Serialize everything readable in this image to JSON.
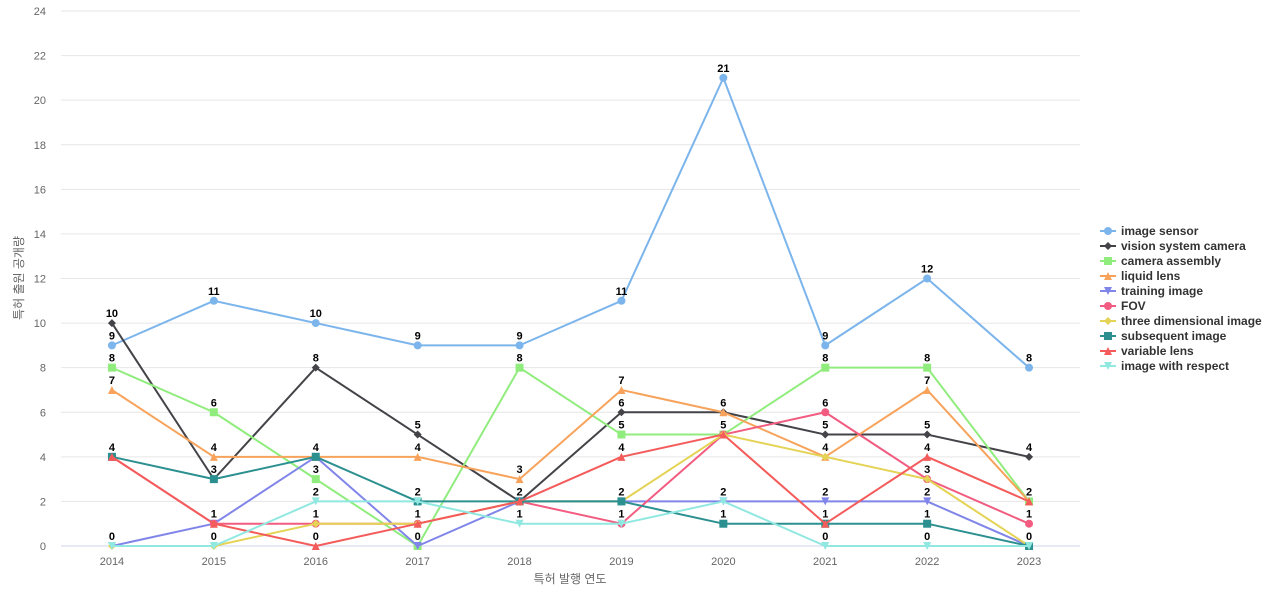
{
  "chart_data": {
    "type": "line",
    "title": "",
    "xlabel": "특허 발행 연도",
    "ylabel": "특허 출원 공개량",
    "categories": [
      "2014",
      "2015",
      "2016",
      "2017",
      "2018",
      "2019",
      "2020",
      "2021",
      "2022",
      "2023"
    ],
    "ylim": [
      0,
      24
    ],
    "yticks": [
      0,
      2,
      4,
      6,
      8,
      10,
      12,
      14,
      16,
      18,
      20,
      22,
      24
    ],
    "grid": true,
    "legend_position": "right",
    "series": [
      {
        "name": "image sensor",
        "color": "#7cb5ec",
        "marker": "circle",
        "values": [
          9,
          11,
          10,
          9,
          9,
          11,
          21,
          9,
          12,
          8
        ]
      },
      {
        "name": "vision system camera",
        "color": "#434348",
        "marker": "diamond",
        "values": [
          10,
          3,
          8,
          5,
          2,
          6,
          6,
          5,
          5,
          4
        ]
      },
      {
        "name": "camera assembly",
        "color": "#90ed7d",
        "marker": "square",
        "values": [
          8,
          6,
          3,
          0,
          8,
          5,
          5,
          8,
          8,
          2
        ]
      },
      {
        "name": "liquid lens",
        "color": "#f7a35c",
        "marker": "triangle",
        "values": [
          7,
          4,
          4,
          4,
          3,
          7,
          6,
          4,
          7,
          2
        ]
      },
      {
        "name": "training image",
        "color": "#8085e9",
        "marker": "triangle-down",
        "values": [
          0,
          1,
          4,
          0,
          2,
          2,
          2,
          2,
          2,
          0
        ]
      },
      {
        "name": "FOV",
        "color": "#f15c80",
        "marker": "circle",
        "values": [
          4,
          1,
          1,
          1,
          2,
          1,
          5,
          6,
          3,
          1
        ]
      },
      {
        "name": "three dimensional image",
        "color": "#e4d354",
        "marker": "diamond",
        "values": [
          0,
          0,
          1,
          1,
          2,
          2,
          5,
          4,
          3,
          0
        ]
      },
      {
        "name": "subsequent image",
        "color": "#2b908f",
        "marker": "square",
        "values": [
          4,
          3,
          4,
          2,
          2,
          2,
          1,
          1,
          1,
          0
        ]
      },
      {
        "name": "variable lens",
        "color": "#f45b5b",
        "marker": "triangle",
        "values": [
          4,
          1,
          0,
          1,
          2,
          4,
          5,
          1,
          4,
          2
        ]
      },
      {
        "name": "image with respect",
        "color": "#91e8e1",
        "marker": "triangle-down",
        "values": [
          0,
          0,
          2,
          2,
          1,
          1,
          2,
          0,
          0,
          0
        ]
      }
    ],
    "data_labels": [
      {
        "x": "2014",
        "values": [
          9,
          10,
          8,
          7,
          4,
          0
        ]
      },
      {
        "x": "2015",
        "values": [
          11,
          6,
          4,
          3,
          1,
          0
        ]
      },
      {
        "x": "2016",
        "values": [
          10,
          8,
          4,
          3,
          2,
          1,
          0
        ]
      },
      {
        "x": "2017",
        "values": [
          9,
          5,
          4,
          2,
          1,
          0
        ]
      },
      {
        "x": "2018",
        "values": [
          9,
          8,
          3,
          2,
          1
        ]
      },
      {
        "x": "2019",
        "values": [
          11,
          7,
          6,
          5,
          4,
          2,
          1
        ]
      },
      {
        "x": "2020",
        "values": [
          21,
          6,
          5,
          2,
          1
        ]
      },
      {
        "x": "2021",
        "values": [
          9,
          8,
          6,
          5,
          4,
          2,
          1,
          0
        ]
      },
      {
        "x": "2022",
        "values": [
          12,
          8,
          7,
          5,
          4,
          3,
          2,
          1,
          0
        ]
      },
      {
        "x": "2023",
        "values": [
          8,
          4,
          2,
          1,
          0
        ]
      }
    ]
  }
}
